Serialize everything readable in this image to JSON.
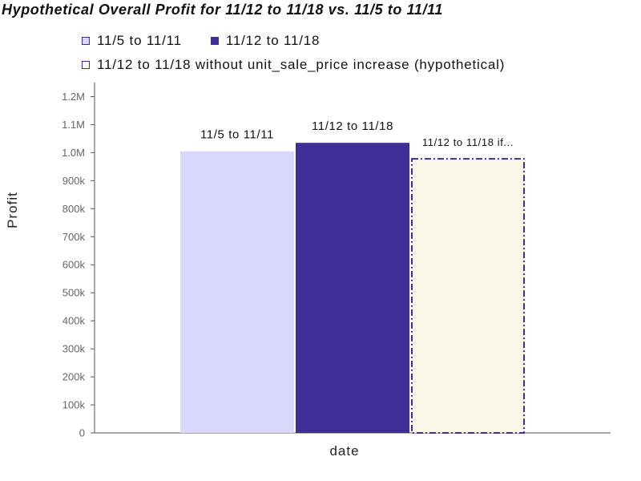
{
  "chart_data": {
    "type": "bar",
    "title": "Hypothetical Overall Profit for 11/12 to 11/18 vs. 11/5 to 11/11",
    "xlabel": "date",
    "ylabel": "Profit",
    "ylim": [
      0,
      1250000
    ],
    "yticks": [
      0,
      100000,
      200000,
      300000,
      400000,
      500000,
      600000,
      700000,
      800000,
      900000,
      1000000,
      1100000,
      1200000
    ],
    "ytick_labels": [
      "0",
      "100k",
      "200k",
      "300k",
      "400k",
      "500k",
      "600k",
      "700k",
      "800k",
      "900k",
      "1.0M",
      "1.1M",
      "1.2M"
    ],
    "grid": false,
    "legend_position": "top-left",
    "series": [
      {
        "name": "11/5 to 11/11",
        "value": 1005000,
        "label": "11/5 to 11/11",
        "fill": "#d9d8fc",
        "stroke": "#d9d8fc",
        "dashed": false
      },
      {
        "name": "11/12 to 11/18",
        "value": 1035000,
        "label": "11/12 to 11/18",
        "fill": "#3f2e96",
        "stroke": "#3f2e96",
        "dashed": false
      },
      {
        "name": "11/12 to 11/18 without unit_sale_price increase (hypothetical)",
        "value": 978000,
        "label": "11/12 to 11/18 if...",
        "fill": "#fbf7e8",
        "stroke": "#3f2e96",
        "dashed": true
      }
    ]
  }
}
